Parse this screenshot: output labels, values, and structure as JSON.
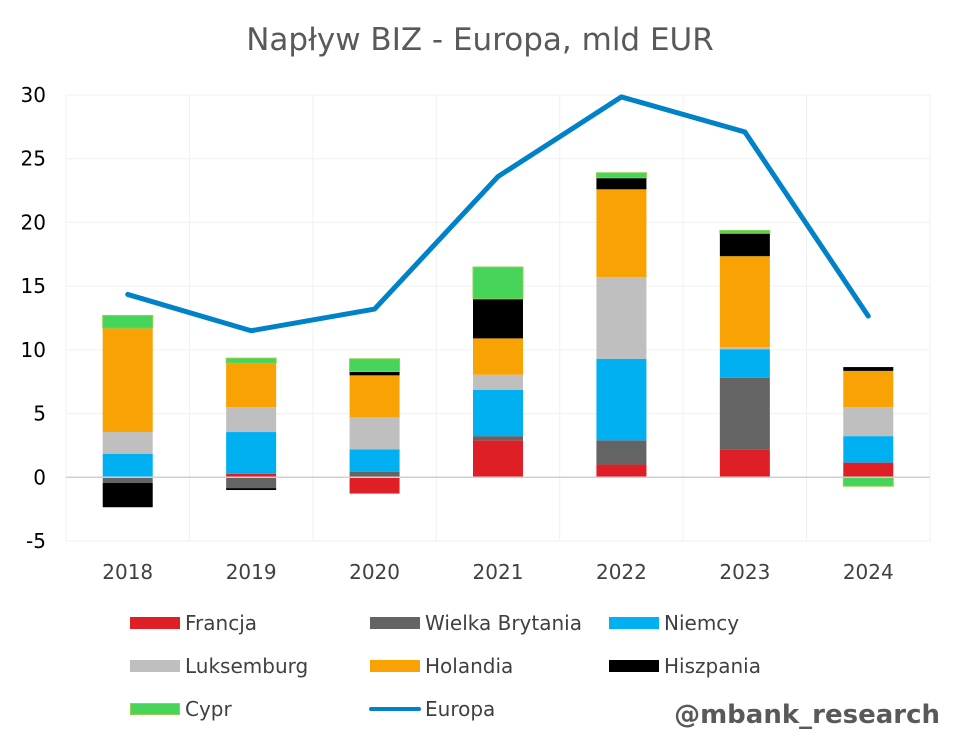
{
  "chart_data": {
    "type": "bar",
    "stacked": true,
    "title": "Napływ BIZ - Europa, mld EUR",
    "xlabel": "",
    "ylabel": "",
    "ylim": [
      -5,
      30
    ],
    "yticks": [
      -5,
      0,
      5,
      10,
      15,
      20,
      25,
      30
    ],
    "grid": true,
    "legend_position": "bottom",
    "categories": [
      "2018",
      "2019",
      "2020",
      "2021",
      "2022",
      "2023",
      "2024"
    ],
    "series": [
      {
        "name": "Francja",
        "type": "bar",
        "color": "#DE1F26",
        "values": [
          0.0,
          0.28,
          -1.28,
          2.9,
          1.0,
          2.2,
          1.15
        ]
      },
      {
        "name": "Wielka Brytania",
        "type": "bar",
        "color": "#646464",
        "values": [
          -0.45,
          -0.85,
          0.42,
          0.33,
          1.9,
          5.6,
          0.0
        ]
      },
      {
        "name": "Niemcy",
        "type": "bar",
        "color": "#00B0F0",
        "values": [
          1.85,
          3.27,
          1.78,
          3.64,
          6.4,
          2.25,
          2.08
        ]
      },
      {
        "name": "Luksemburg",
        "type": "bar",
        "color": "#BFBFBF",
        "values": [
          1.7,
          1.95,
          2.5,
          1.18,
          6.4,
          0.15,
          2.27
        ]
      },
      {
        "name": "Holandia",
        "type": "bar",
        "color": "#F9A204",
        "values": [
          8.15,
          3.45,
          3.3,
          2.85,
          6.9,
          7.15,
          2.85
        ]
      },
      {
        "name": "Hiszpania",
        "type": "bar",
        "color": "#000000",
        "values": [
          -1.9,
          -0.15,
          0.3,
          3.1,
          0.9,
          1.8,
          0.3
        ]
      },
      {
        "name": "Cypr",
        "type": "bar",
        "color": "#47D45A",
        "values": [
          1.0,
          0.4,
          1.0,
          2.5,
          0.4,
          0.22,
          -0.7
        ]
      },
      {
        "name": "Europa",
        "type": "line",
        "color": "#0082C8",
        "values": [
          14.35,
          11.5,
          13.2,
          23.6,
          29.85,
          27.1,
          12.65
        ]
      }
    ]
  },
  "watermark": "@mbank_research"
}
